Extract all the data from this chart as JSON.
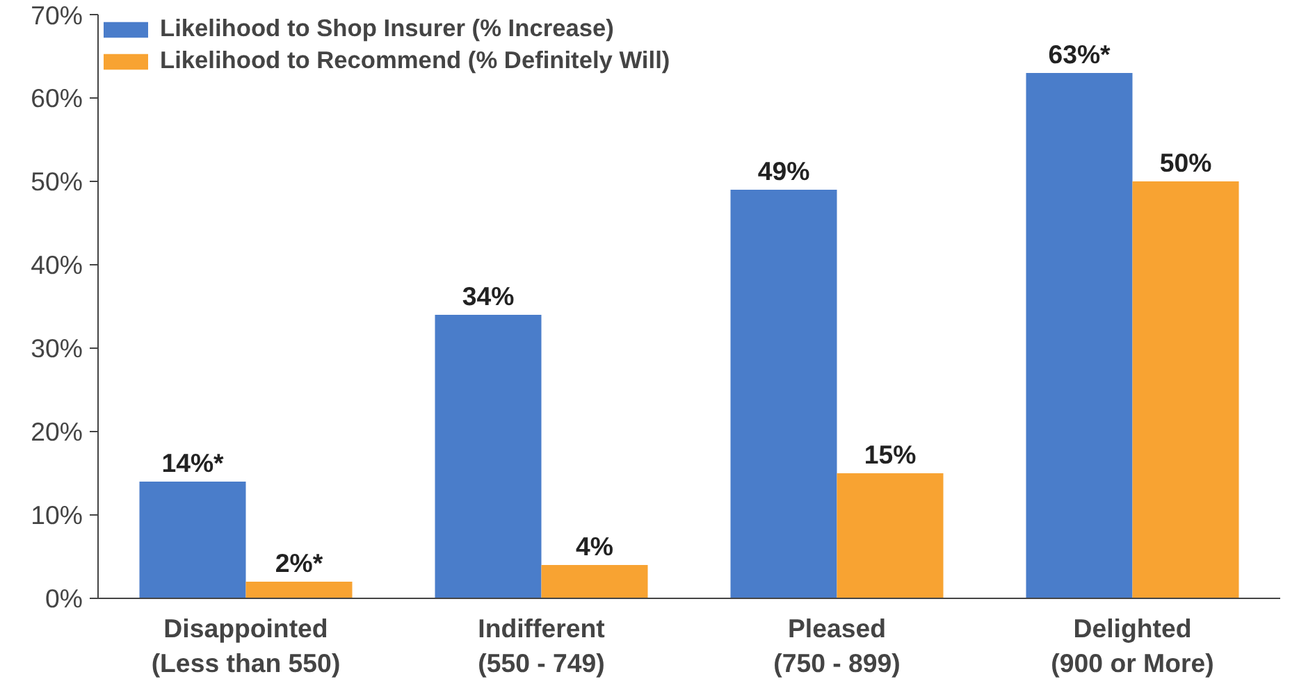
{
  "chart_data": {
    "type": "bar",
    "categories": [
      "Disappointed\n(Less than 550)",
      "Indifferent\n(550 - 749)",
      "Pleased\n(750 - 899)",
      "Delighted\n(900 or More)"
    ],
    "series": [
      {
        "name": "Likelihood to Shop Insurer (% Increase)",
        "color": "#4a7dca",
        "values": [
          14,
          34,
          49,
          63
        ],
        "value_labels": [
          "14%*",
          "34%",
          "49%",
          "63%*"
        ]
      },
      {
        "name": "Likelihood to Recommend (% Definitely Will)",
        "color": "#f8a332",
        "values": [
          2,
          4,
          15,
          50
        ],
        "value_labels": [
          "2%*",
          "4%",
          "15%",
          "50%"
        ]
      }
    ],
    "ylim": [
      0,
      70
    ],
    "yticks": [
      {
        "value": 0,
        "label": "0%"
      },
      {
        "value": 10,
        "label": "10%"
      },
      {
        "value": 20,
        "label": "20%"
      },
      {
        "value": 30,
        "label": "30%"
      },
      {
        "value": 40,
        "label": "40%"
      },
      {
        "value": 50,
        "label": "50%"
      },
      {
        "value": 60,
        "label": "60%"
      },
      {
        "value": 70,
        "label": "70%"
      }
    ],
    "grid": false,
    "legend": "top left"
  }
}
